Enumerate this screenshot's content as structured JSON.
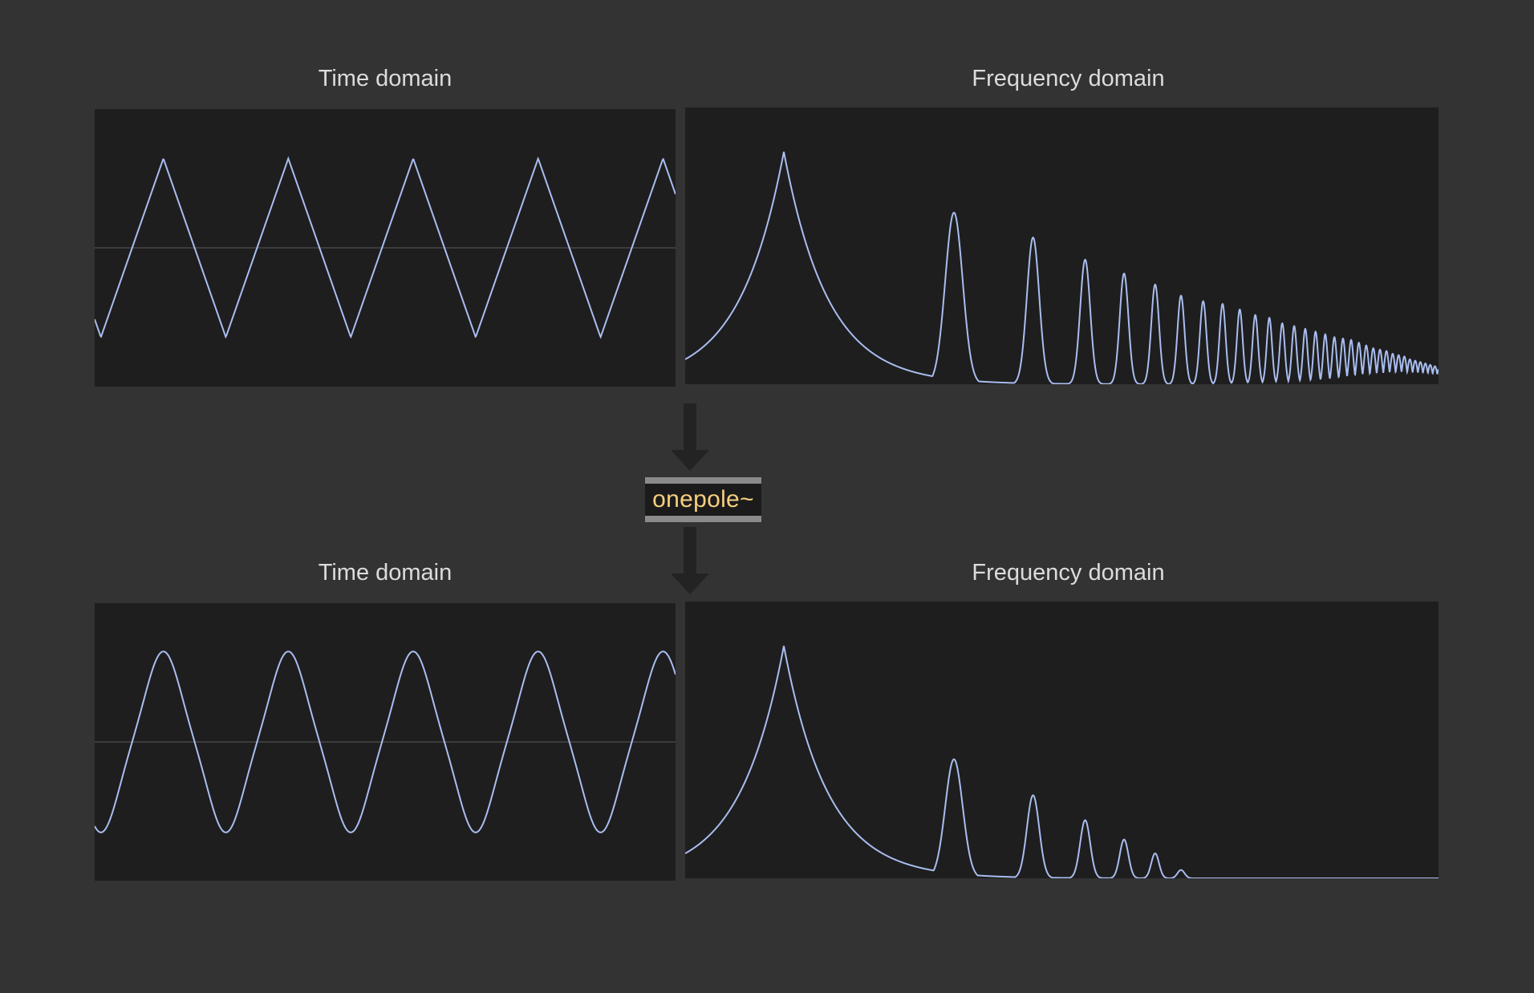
{
  "top": {
    "time_label": "Time domain",
    "freq_label": "Frequency domain"
  },
  "bottom": {
    "time_label": "Time domain",
    "freq_label": "Frequency domain"
  },
  "filter": {
    "name": "onepole~"
  },
  "colors": {
    "background": "#333333",
    "scope_bg": "#1e1e1e",
    "trace": "#a9bdf0",
    "axis": "#3c3c3c",
    "object_text": "#f7cf7f",
    "object_border": "#8a8a8a",
    "arrow": "#232323"
  },
  "chart_data": [
    {
      "type": "line",
      "id": "top-time",
      "waveform": "triangle",
      "cycles": 4.65,
      "phase_cycles": 0.7,
      "amplitude": 0.87,
      "ylim": [
        -1,
        1
      ],
      "grid": "center-line"
    },
    {
      "type": "line",
      "id": "top-freq",
      "harmonics": [
        1,
        3,
        5,
        7,
        9,
        11,
        13,
        15,
        17,
        19,
        21,
        23,
        25,
        27,
        29,
        31,
        33,
        35,
        37,
        39,
        41,
        43,
        45,
        47,
        49,
        51,
        53,
        55,
        57,
        59,
        61,
        63,
        65,
        67,
        69,
        71,
        73,
        75,
        77,
        79,
        81,
        83,
        85,
        87,
        89
      ],
      "peak_levels": [
        0.84,
        0.62,
        0.53,
        0.45,
        0.4,
        0.36,
        0.32,
        0.3,
        0.29,
        0.27,
        0.25,
        0.24,
        0.22,
        0.21,
        0.2,
        0.19,
        0.18,
        0.17,
        0.165,
        0.16,
        0.15,
        0.14,
        0.13,
        0.125,
        0.12,
        0.11,
        0.105,
        0.1,
        0.09,
        0.085,
        0.08,
        0.075,
        0.07,
        0.065,
        0.06,
        0.05,
        0.045,
        0.04,
        0.035,
        0.03,
        0.025,
        0.02,
        0.016,
        0.012,
        0.01
      ],
      "ylim": [
        0,
        1
      ]
    },
    {
      "type": "line",
      "id": "bottom-time",
      "waveform": "filtered-triangle",
      "cycles": 4.65,
      "phase_cycles": 0.7,
      "amplitude": 0.88,
      "ylim": [
        -1,
        1
      ],
      "grid": "center-line"
    },
    {
      "type": "line",
      "id": "bottom-freq",
      "harmonics": [
        1,
        3,
        5,
        7,
        9,
        11,
        13
      ],
      "peak_levels": [
        0.84,
        0.43,
        0.3,
        0.21,
        0.14,
        0.09,
        0.03
      ],
      "ylim": [
        0,
        1
      ]
    }
  ]
}
